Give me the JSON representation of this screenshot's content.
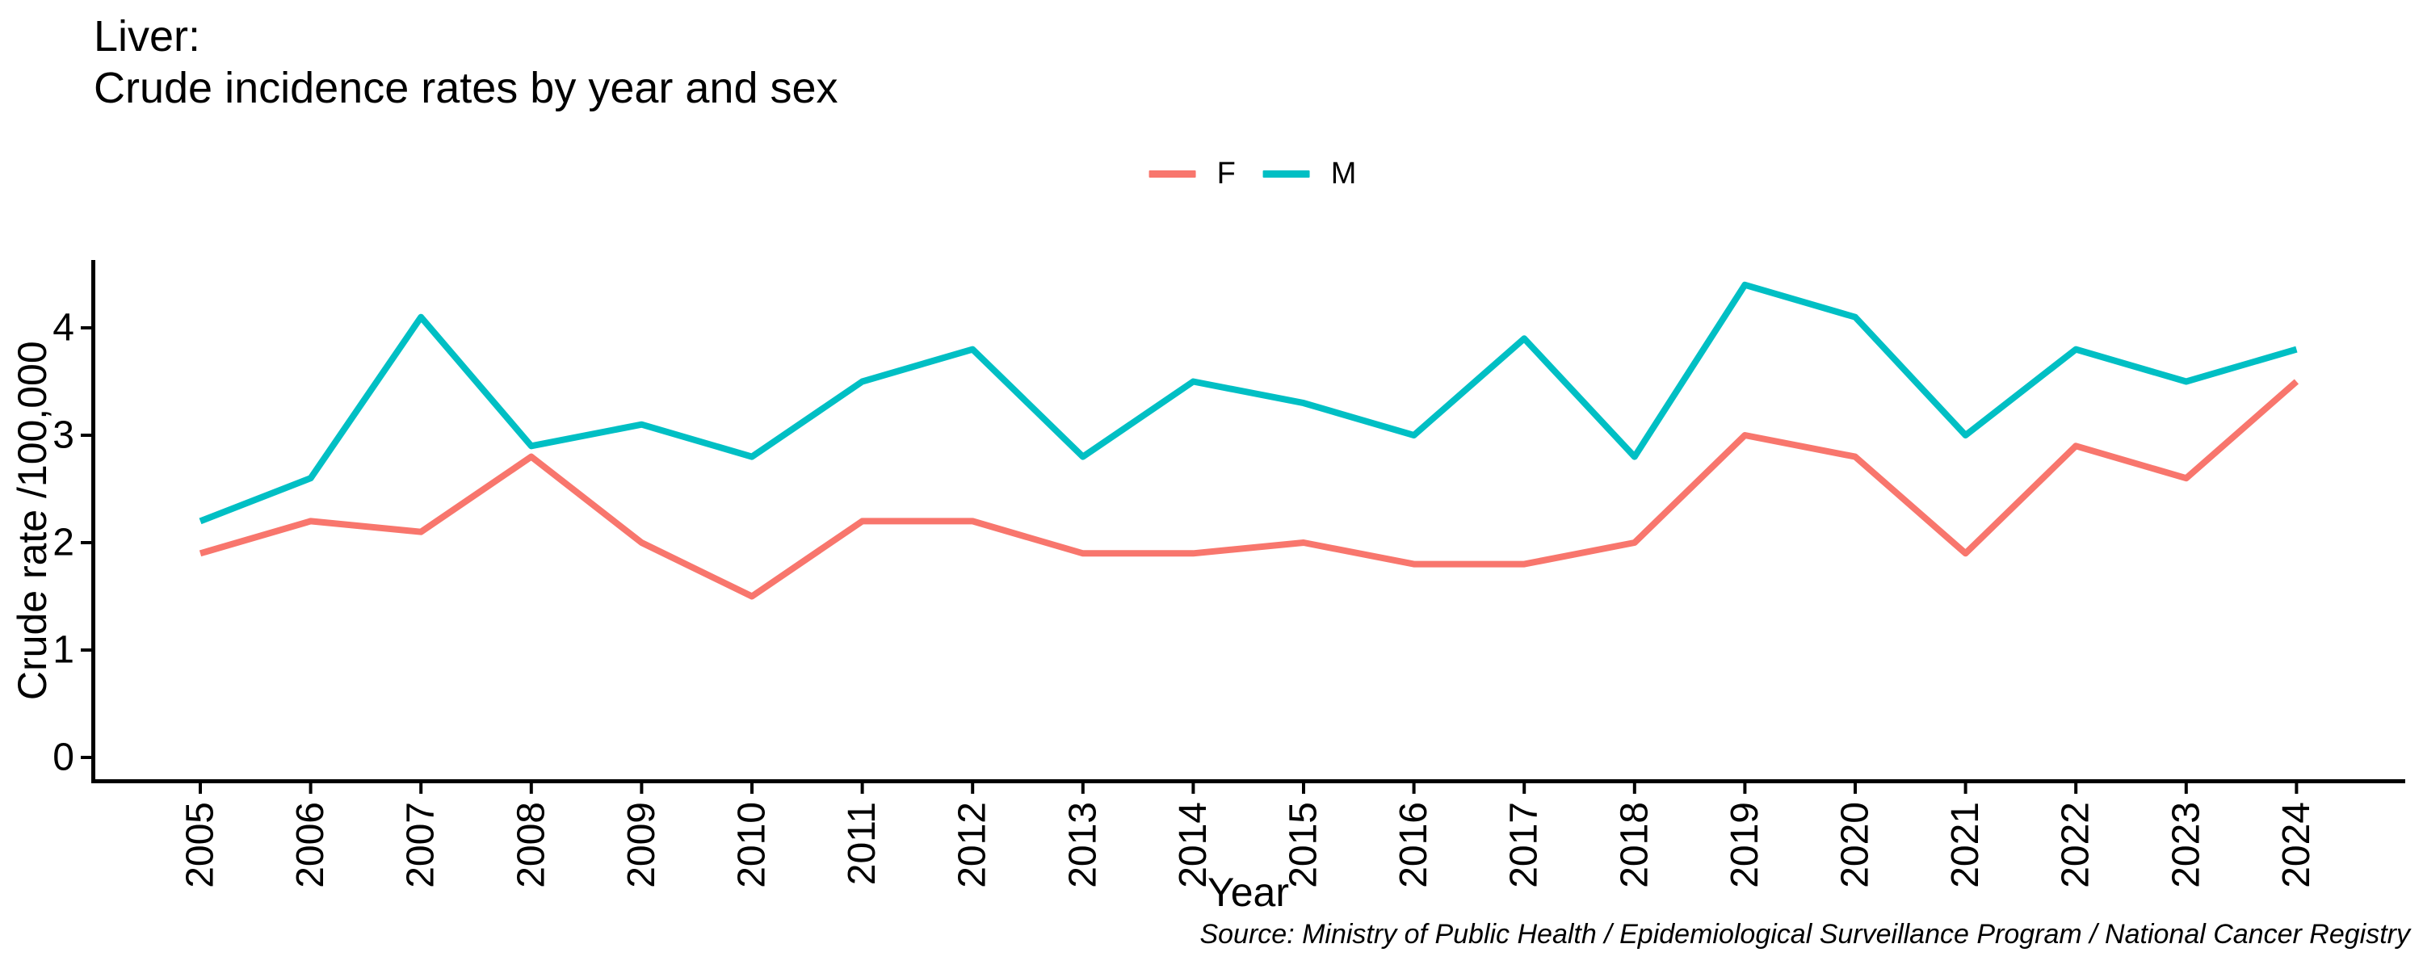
{
  "title_line1": "Liver:",
  "title_line2": "Crude incidence rates by year and sex",
  "source_note": "Source: Ministry of Public Health / Epidemiological Surveillance Program / National Cancer Registry",
  "colors": {
    "female": "#F8766D",
    "male": "#00BFC4",
    "axis": "#000000"
  },
  "legend": {
    "position": "top",
    "items": [
      {
        "label": "F",
        "color": "#F8766D"
      },
      {
        "label": "M",
        "color": "#00BFC4"
      }
    ]
  },
  "chart_data": {
    "type": "line",
    "title": "Liver: Crude incidence rates by year and sex",
    "xlabel": "Year",
    "ylabel": "Crude rate /100,000",
    "x": [
      2005,
      2006,
      2007,
      2008,
      2009,
      2010,
      2011,
      2012,
      2013,
      2014,
      2015,
      2016,
      2017,
      2018,
      2019,
      2020,
      2021,
      2022,
      2023,
      2024
    ],
    "series": [
      {
        "name": "F",
        "color": "#F8766D",
        "values": [
          1.9,
          2.2,
          2.1,
          2.8,
          2.0,
          1.5,
          2.2,
          2.2,
          1.9,
          1.9,
          2.0,
          1.8,
          1.8,
          2.0,
          3.0,
          2.8,
          1.9,
          2.9,
          2.6,
          3.5
        ]
      },
      {
        "name": "M",
        "color": "#00BFC4",
        "values": [
          2.2,
          2.6,
          4.1,
          2.9,
          3.1,
          2.8,
          3.5,
          3.8,
          2.8,
          3.5,
          3.3,
          3.0,
          3.9,
          2.8,
          4.4,
          4.1,
          3.0,
          3.8,
          3.5,
          3.8
        ]
      }
    ],
    "y_ticks": [
      0,
      1,
      2,
      3,
      4
    ],
    "ylim": [
      -0.2,
      4.6
    ],
    "grid": false,
    "legend_position": "top"
  }
}
